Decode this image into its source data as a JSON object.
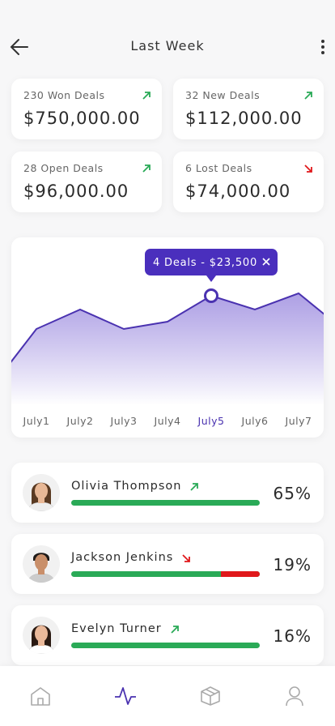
{
  "header": {
    "title": "Last Week"
  },
  "stats": [
    {
      "label": "230 Won Deals",
      "amount": "$750,000.00",
      "trend": "up"
    },
    {
      "label": "32 New Deals",
      "amount": "$112,000.00",
      "trend": "up"
    },
    {
      "label": "28 Open Deals",
      "amount": "$96,000.00",
      "trend": "up"
    },
    {
      "label": "6 Lost Deals",
      "amount": "$74,000.00",
      "trend": "down"
    }
  ],
  "chart": {
    "type": "area",
    "categories": [
      null,
      "July1",
      "July2",
      "July3",
      "July4",
      "July5",
      "July6",
      "July7",
      null
    ],
    "values": [
      12,
      47,
      59,
      47,
      51.5,
      67.5,
      59,
      69,
      47
    ],
    "ylim": [
      0,
      100
    ],
    "color": "#4a32b0",
    "selected": 5,
    "tooltip": "4 Deals - $23,500"
  },
  "people": [
    {
      "name": "Olivia Thompson",
      "percent": "65%",
      "trend": "up"
    },
    {
      "name": "Jackson Jenkins",
      "percent": "19%",
      "trend": "down"
    },
    {
      "name": "Evelyn Turner",
      "percent": "16%",
      "trend": "up"
    }
  ]
}
